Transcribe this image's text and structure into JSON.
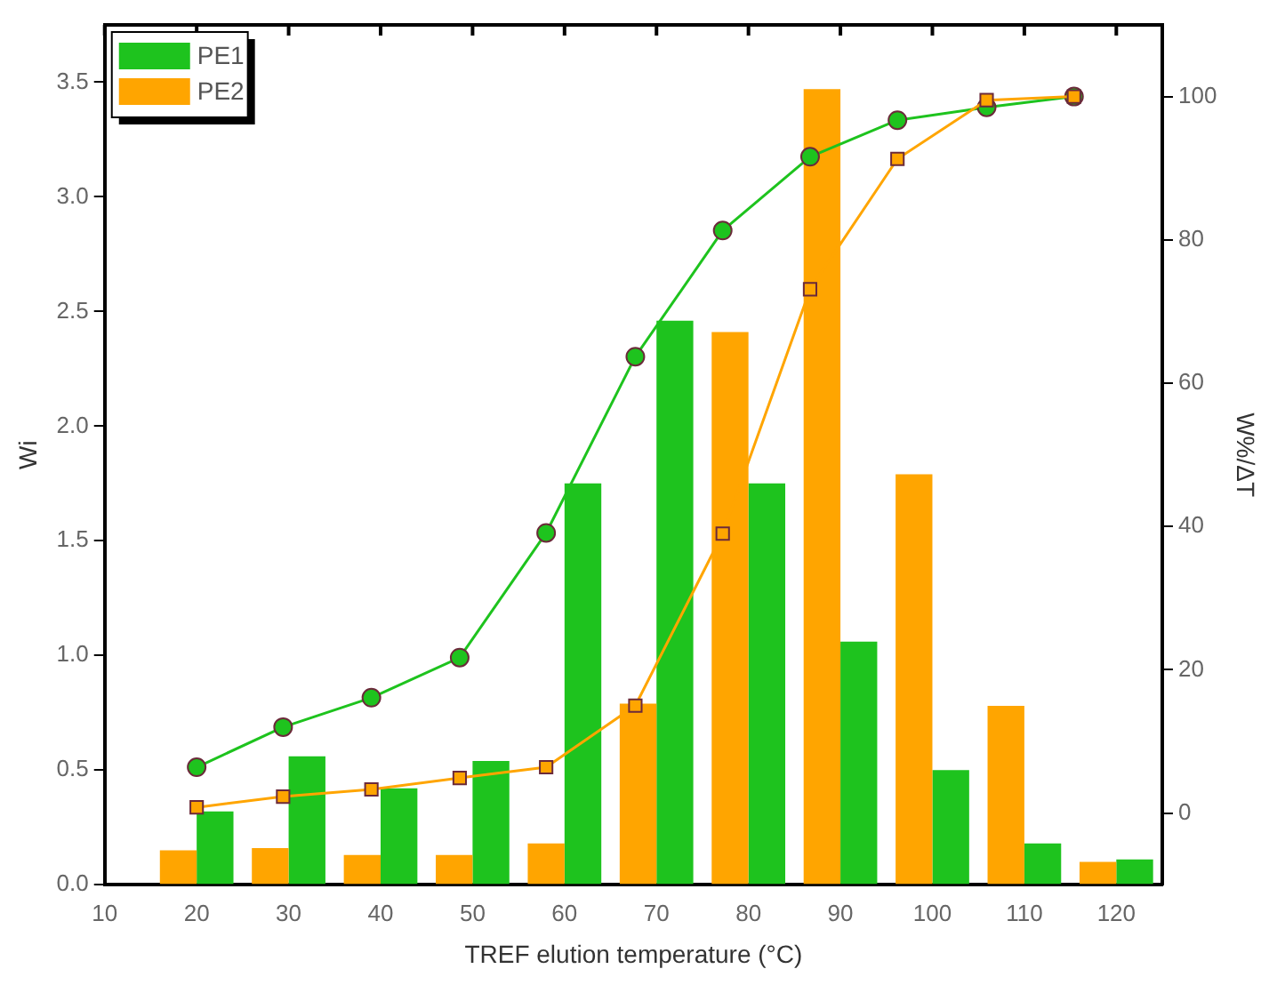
{
  "chart_data": {
    "type": "bar",
    "xlabel": "TREF elution temperature (°C)",
    "ylabel": "Wi",
    "y2label": "W%/ΔT",
    "x": [
      20,
      30,
      40,
      50,
      60,
      70,
      80,
      90,
      100,
      110,
      120
    ],
    "series": [
      {
        "name": "PE2",
        "color": "#ffa500",
        "values": [
          0.15,
          0.16,
          0.13,
          0.13,
          0.18,
          0.79,
          2.41,
          3.47,
          1.79,
          0.78,
          0.1
        ]
      },
      {
        "name": "PE1",
        "color": "#1ec31e",
        "values": [
          0.32,
          0.56,
          0.42,
          0.54,
          1.75,
          2.46,
          1.75,
          1.06,
          0.5,
          0.18,
          0.11
        ]
      },
      {
        "type": "line",
        "axis": "y2",
        "marker": "circle",
        "color": "#1ec31e",
        "x": [
          20,
          29.4,
          39,
          48.6,
          58,
          67.7,
          77.2,
          86.7,
          96.2,
          105.9,
          115.4
        ],
        "values": [
          6.4,
          12,
          16.1,
          21.7,
          39.1,
          63.7,
          81.3,
          91.6,
          96.7,
          98.5,
          100
        ]
      },
      {
        "type": "line",
        "axis": "y2",
        "marker": "square",
        "color": "#ffa500",
        "x": [
          20,
          29.4,
          39,
          48.6,
          58,
          67.7,
          77.2,
          86.7,
          96.2,
          105.9,
          115.4
        ],
        "values": [
          0.8,
          2.3,
          3.3,
          4.9,
          6.4,
          15,
          39,
          73.1,
          91.3,
          99.5,
          100
        ]
      }
    ],
    "xlim": [
      10,
      125
    ],
    "xticks": [
      10,
      20,
      30,
      40,
      50,
      60,
      70,
      80,
      90,
      100,
      110,
      120
    ],
    "ylim": [
      0,
      3.75
    ],
    "yticks": [
      {
        "value": 0,
        "label": "0.0"
      },
      {
        "value": 0.5,
        "label": "0.5"
      },
      {
        "value": 1,
        "label": "1.0"
      },
      {
        "value": 1.5,
        "label": "1.5"
      },
      {
        "value": 2,
        "label": "2.0"
      },
      {
        "value": 2.5,
        "label": "2.5"
      },
      {
        "value": 3,
        "label": "3.0"
      },
      {
        "value": 3.5,
        "label": "3.5"
      }
    ],
    "y2lim": [
      -10,
      110
    ],
    "y2ticks": [
      0,
      20,
      40,
      60,
      80,
      100
    ],
    "legend": "top left",
    "grid": false
  }
}
